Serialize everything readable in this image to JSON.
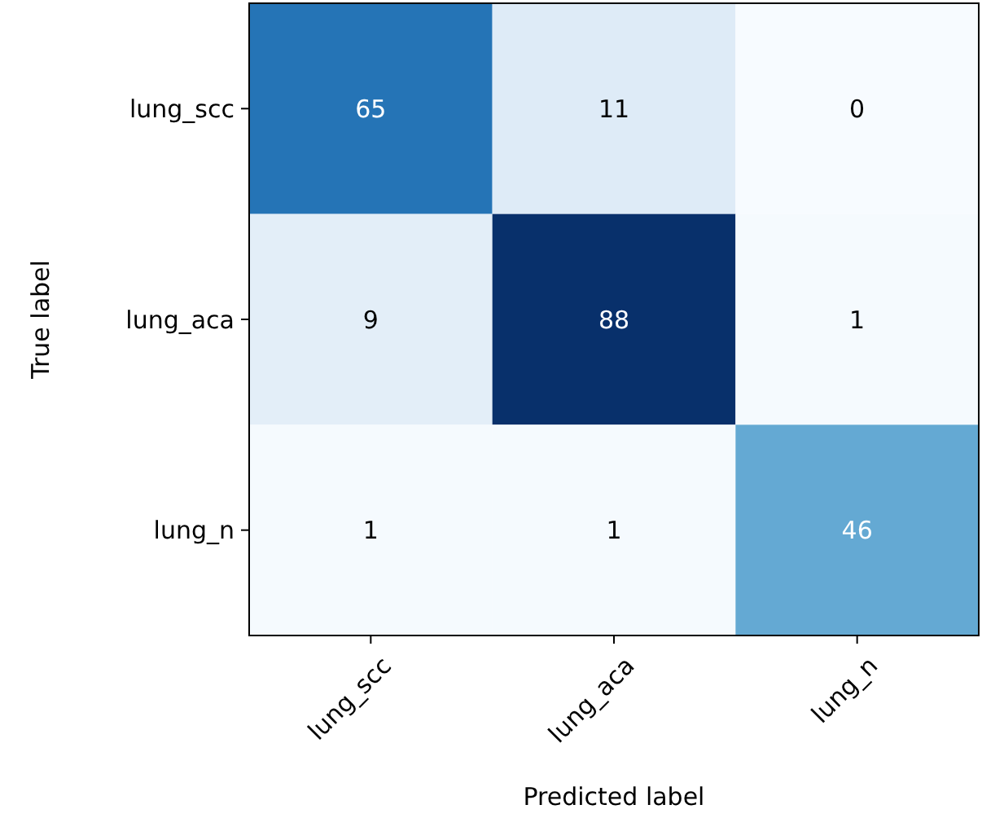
{
  "chart_data": {
    "type": "heatmap",
    "xlabel": "Predicted label",
    "ylabel": "True label",
    "data_labels": true,
    "categories": [
      "lung_scc",
      "lung_aca",
      "lung_n"
    ],
    "y_categories": [
      "lung_scc",
      "lung_aca",
      "lung_n"
    ],
    "cells": [
      [
        65,
        11,
        0
      ],
      [
        9,
        88,
        1
      ],
      [
        1,
        1,
        46
      ]
    ]
  }
}
